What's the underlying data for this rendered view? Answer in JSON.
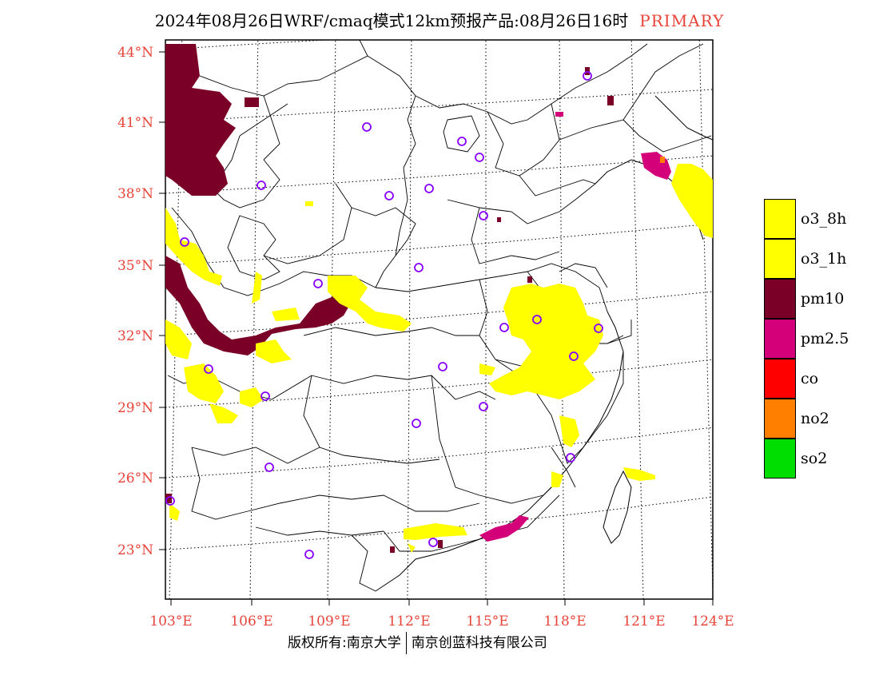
{
  "title": {
    "main": "2024年08月26日WRF/cmaq模式12km预报产品:08月26日16时",
    "tag": "PRIMARY"
  },
  "axes": {
    "lat_labels": [
      "44°N",
      "41°N",
      "38°N",
      "35°N",
      "32°N",
      "29°N",
      "26°N",
      "23°N"
    ],
    "lon_labels": [
      "103°E",
      "106°E",
      "109°E",
      "112°E",
      "115°E",
      "118°E",
      "121°E",
      "124°E"
    ],
    "label_color": "#e8443a"
  },
  "legend": [
    {
      "label": "o3_8h",
      "color": "#ffff00"
    },
    {
      "label": "o3_1h",
      "color": "#ffff00"
    },
    {
      "label": "pm10",
      "color": "#7a0028"
    },
    {
      "label": "pm2.5",
      "color": "#d4007a"
    },
    {
      "label": "co",
      "color": "#ff0000"
    },
    {
      "label": "no2",
      "color": "#ff7f00"
    },
    {
      "label": "so2",
      "color": "#00dd00"
    }
  ],
  "station_color": "#8800ff",
  "footer": {
    "left": "版权所有:南京大学",
    "right": "南京创蓝科技有限公司"
  }
}
